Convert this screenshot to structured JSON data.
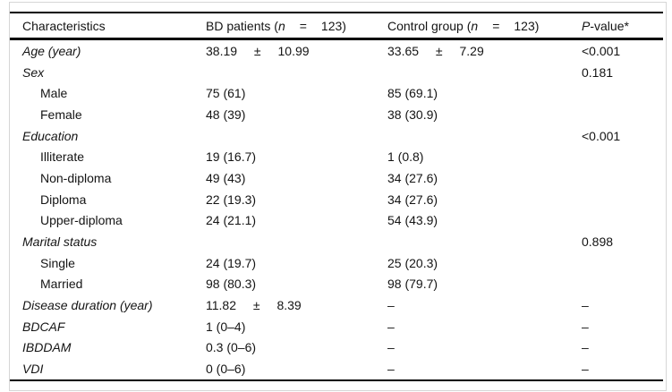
{
  "table": {
    "header": {
      "characteristics": "Characteristics",
      "bd": {
        "prefix": "BD patients (",
        "n": "n",
        "eq": "=",
        "count": "123)"
      },
      "control": {
        "prefix": "Control group (",
        "n": "n",
        "eq": "=",
        "count": "123)"
      },
      "p": {
        "italic": "P",
        "rest": "-value*"
      }
    },
    "rows": [
      {
        "label": "Age (year)",
        "bd": "38.19 ± 10.99",
        "control": "33.65 ± 7.29",
        "p": "<0.001"
      },
      {
        "label": "Sex",
        "bd": "",
        "control": "",
        "p": "0.181"
      },
      {
        "label": "Male",
        "bd": "75 (61)",
        "control": "85 (69.1)",
        "p": ""
      },
      {
        "label": "Female",
        "bd": "48 (39)",
        "control": "38 (30.9)",
        "p": ""
      },
      {
        "label": "Education",
        "bd": "",
        "control": "",
        "p": "<0.001"
      },
      {
        "label": "Illiterate",
        "bd": "19 (16.7)",
        "control": "1 (0.8)",
        "p": ""
      },
      {
        "label": "Non-diploma",
        "bd": "49 (43)",
        "control": "34 (27.6)",
        "p": ""
      },
      {
        "label": "Diploma",
        "bd": "22 (19.3)",
        "control": "34 (27.6)",
        "p": ""
      },
      {
        "label": "Upper-diploma",
        "bd": "24 (21.1)",
        "control": "54 (43.9)",
        "p": ""
      },
      {
        "label": "Marital status",
        "bd": "",
        "control": "",
        "p": "0.898"
      },
      {
        "label": "Single",
        "bd": "24 (19.7)",
        "control": "25 (20.3)",
        "p": ""
      },
      {
        "label": "Married",
        "bd": "98 (80.3)",
        "control": "98 (79.7)",
        "p": ""
      },
      {
        "label": "Disease duration (year)",
        "bd": "11.82 ± 8.39",
        "control": "–",
        "p": "–"
      },
      {
        "label": "BDCAF",
        "bd": "1 (0–4)",
        "control": "–",
        "p": "–"
      },
      {
        "label": "IBDDAM",
        "bd": "0.3 (0–6)",
        "control": "–",
        "p": "–"
      },
      {
        "label": "VDI",
        "bd": "0 (0–6)",
        "control": "–",
        "p": "–"
      }
    ],
    "colors": {
      "rule": "#000000",
      "frame_border": "#d6d6d6",
      "text": "#141414",
      "background": "#ffffff"
    }
  }
}
